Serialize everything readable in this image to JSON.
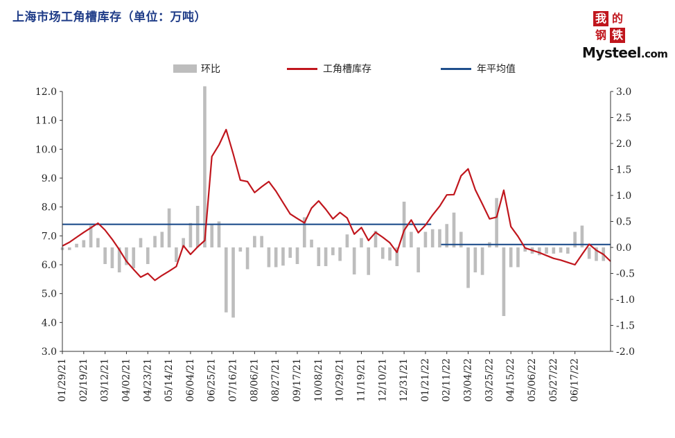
{
  "title": "上海市场工角槽库存（单位：万吨）",
  "logo": {
    "chars": [
      "我",
      "的",
      "钢",
      "铁"
    ],
    "brand": "Mysteel",
    "suffix": ".com"
  },
  "legend": [
    {
      "name": "环比",
      "type": "bar",
      "color": "#bdbdbd"
    },
    {
      "name": "工角槽库存",
      "type": "line",
      "color": "#c0161d"
    },
    {
      "name": "年平均值",
      "type": "line",
      "color": "#1f4e8c"
    }
  ],
  "chart_data": {
    "type": "bar+line",
    "x_tick_labels": [
      "01/29/21",
      "02/19/21",
      "03/12/21",
      "04/02/21",
      "04/23/21",
      "05/14/21",
      "06/04/21",
      "06/25/21",
      "07/16/21",
      "08/06/21",
      "08/27/21",
      "09/17/21",
      "10/08/21",
      "10/29/21",
      "11/19/21",
      "12/10/21",
      "12/31/21",
      "01/21/22",
      "02/11/22",
      "03/04/22",
      "03/25/22",
      "04/15/22",
      "05/06/22",
      "05/27/22",
      "06/17/22"
    ],
    "left_axis": {
      "min": 3.0,
      "max": 12.0,
      "step": 1.0,
      "ticks": [
        "3.0",
        "4.0",
        "5.0",
        "6.0",
        "7.0",
        "8.0",
        "9.0",
        "10.0",
        "11.0",
        "12.0"
      ]
    },
    "right_axis": {
      "min": -2.0,
      "max": 3.0,
      "step": 0.5,
      "ticks": [
        "-2.0",
        "-1.5",
        "-1.0",
        "-0.5",
        "0.0",
        "0.5",
        "1.0",
        "1.5",
        "2.0",
        "2.5",
        "3.0"
      ]
    },
    "series": [
      {
        "name": "环比",
        "axis": "right",
        "type": "bar",
        "values": [
          -0.05,
          -0.05,
          0.07,
          0.14,
          0.42,
          0.18,
          -0.32,
          -0.4,
          -0.48,
          -0.34,
          -0.4,
          0.18,
          -0.32,
          0.22,
          0.3,
          0.75,
          -0.28,
          0.18,
          0.47,
          0.8,
          3.1,
          0.45,
          0.5,
          -1.25,
          -1.35,
          -0.08,
          -0.42,
          0.22,
          0.22,
          -0.38,
          -0.38,
          -0.35,
          -0.2,
          -0.32,
          0.58,
          0.15,
          -0.36,
          -0.36,
          -0.15,
          -0.26,
          0.25,
          -0.52,
          0.18,
          -0.53,
          0.32,
          -0.22,
          -0.25,
          -0.36,
          0.88,
          0.3,
          -0.48,
          0.3,
          0.35,
          0.35,
          0.45,
          0.67,
          0.3,
          -0.78,
          -0.48,
          -0.53,
          0.1,
          0.95,
          -1.32,
          -0.38,
          -0.38,
          -0.08,
          -0.12,
          -0.15,
          -0.12,
          -0.12,
          -0.1,
          -0.12,
          0.3,
          0.42,
          -0.22,
          -0.26,
          -0.26
        ]
      },
      {
        "name": "工角槽库存",
        "axis": "left",
        "type": "line",
        "values": [
          6.65,
          6.78,
          6.95,
          7.12,
          7.28,
          7.44,
          7.2,
          6.88,
          6.52,
          6.12,
          5.84,
          5.57,
          5.7,
          5.46,
          5.63,
          5.78,
          5.94,
          6.66,
          6.36,
          6.62,
          6.84,
          9.75,
          10.15,
          10.68,
          9.84,
          8.93,
          8.88,
          8.5,
          8.7,
          8.88,
          8.55,
          8.15,
          7.76,
          7.6,
          7.45,
          7.96,
          8.21,
          7.92,
          7.59,
          7.81,
          7.62,
          7.06,
          7.29,
          6.84,
          7.12,
          6.95,
          6.76,
          6.43,
          7.19,
          7.55,
          7.11,
          7.37,
          7.72,
          8.03,
          8.42,
          8.43,
          9.08,
          9.32,
          8.6,
          8.1,
          7.59,
          7.65,
          8.58,
          7.32,
          6.98,
          6.58,
          6.5,
          6.42,
          6.32,
          6.22,
          6.16,
          6.08,
          6.0,
          6.36,
          6.71,
          6.5,
          6.36,
          6.12
        ]
      },
      {
        "name": "年平均值",
        "axis": "left",
        "type": "step-line",
        "segments": [
          {
            "label": "2021",
            "value": 7.4
          },
          {
            "label": "2022",
            "value": 6.7
          }
        ]
      }
    ],
    "grid": false,
    "legend_position": "top"
  }
}
